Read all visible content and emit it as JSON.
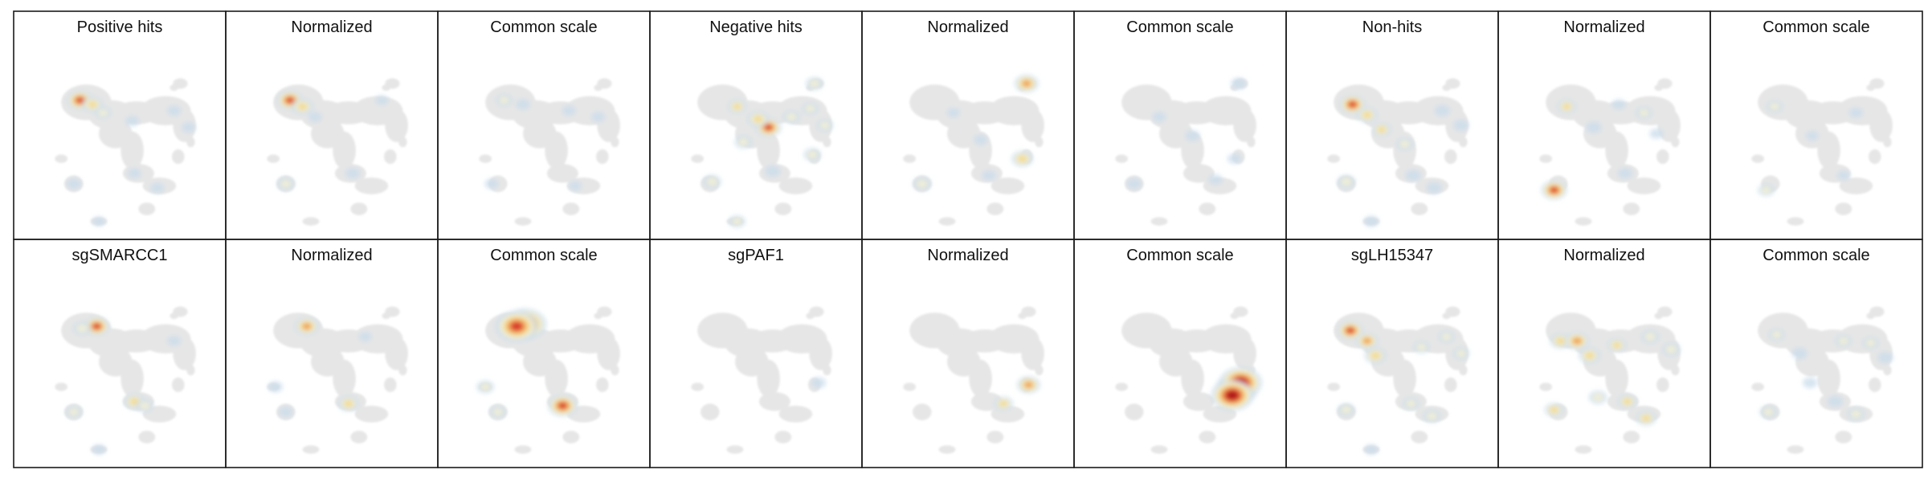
{
  "chart_data": {
    "type": "heatmap",
    "description_kind": "grid of density overlays on a shared embedding layout",
    "background_color": "#e6e6e6",
    "colormap": [
      "#c9dceb",
      "#f2efd6",
      "#f4d98a",
      "#ef9a55",
      "#d73027",
      "#a50f15"
    ],
    "panels": [
      {
        "title": "Positive hits",
        "hotspots": [
          [
            -1.9,
            2.2,
            1.0
          ],
          [
            -1.3,
            2.0,
            0.7
          ],
          [
            -0.8,
            1.6,
            0.45
          ],
          [
            0.6,
            1.2,
            0.3
          ],
          [
            2.6,
            1.7,
            0.3
          ],
          [
            3.3,
            0.9,
            0.3
          ],
          [
            -2.2,
            -1.8,
            0.35
          ],
          [
            0.7,
            -1.3,
            0.3
          ],
          [
            1.8,
            -2.0,
            0.3
          ],
          [
            -1.0,
            -3.6,
            0.25
          ]
        ]
      },
      {
        "title": "Normalized",
        "hotspots": [
          [
            -2.0,
            2.2,
            1.0
          ],
          [
            -1.4,
            1.9,
            0.75
          ],
          [
            -0.8,
            1.4,
            0.3
          ],
          [
            -2.2,
            -1.8,
            0.5
          ],
          [
            1.0,
            -1.3,
            0.35
          ],
          [
            2.4,
            2.2,
            0.25
          ]
        ]
      },
      {
        "title": "Common scale",
        "hotspots": [
          [
            -1.9,
            2.2,
            0.45
          ],
          [
            -1.0,
            2.0,
            0.35
          ],
          [
            1.2,
            1.7,
            0.3
          ],
          [
            2.6,
            1.4,
            0.3
          ],
          [
            -2.5,
            -1.8,
            0.3
          ],
          [
            1.5,
            -1.9,
            0.25
          ]
        ]
      },
      {
        "title": "Negative hits",
        "hotspots": [
          [
            2.8,
            3.0,
            0.5
          ],
          [
            0.6,
            0.9,
            1.0
          ],
          [
            0.1,
            1.3,
            0.75
          ],
          [
            -0.9,
            1.9,
            0.6
          ],
          [
            -0.6,
            0.2,
            0.5
          ],
          [
            1.7,
            1.4,
            0.5
          ],
          [
            2.6,
            1.8,
            0.45
          ],
          [
            3.3,
            1.0,
            0.45
          ],
          [
            2.7,
            -0.4,
            0.5
          ],
          [
            -2.1,
            -1.7,
            0.55
          ],
          [
            0.8,
            -1.2,
            0.4
          ],
          [
            -0.9,
            -3.6,
            0.45
          ]
        ]
      },
      {
        "title": "Normalized",
        "hotspots": [
          [
            2.8,
            3.0,
            0.9
          ],
          [
            2.6,
            -0.6,
            0.75
          ],
          [
            -2.2,
            -1.8,
            0.55
          ],
          [
            0.6,
            0.3,
            0.3
          ],
          [
            -0.7,
            1.6,
            0.25
          ],
          [
            1.0,
            -1.4,
            0.3
          ]
        ]
      },
      {
        "title": "Common scale",
        "hotspots": [
          [
            2.8,
            3.0,
            0.4
          ],
          [
            0.6,
            0.5,
            0.35
          ],
          [
            -1.0,
            1.4,
            0.3
          ],
          [
            -2.2,
            -1.8,
            0.35
          ],
          [
            1.7,
            -1.6,
            0.3
          ],
          [
            2.6,
            -0.6,
            0.3
          ]
        ]
      },
      {
        "title": "Non-hits",
        "hotspots": [
          [
            -1.9,
            2.0,
            1.0
          ],
          [
            -1.2,
            1.5,
            0.7
          ],
          [
            -0.5,
            0.8,
            0.6
          ],
          [
            0.6,
            0.1,
            0.5
          ],
          [
            2.4,
            1.7,
            0.4
          ],
          [
            3.3,
            1.0,
            0.4
          ],
          [
            -2.2,
            -1.7,
            0.55
          ],
          [
            1.0,
            -1.4,
            0.4
          ],
          [
            2.0,
            -2.0,
            0.4
          ],
          [
            -1.0,
            -3.6,
            0.35
          ]
        ]
      },
      {
        "title": "Normalized",
        "hotspots": [
          [
            -2.4,
            -2.1,
            1.0
          ],
          [
            -1.8,
            1.9,
            0.6
          ],
          [
            1.9,
            1.6,
            0.45
          ],
          [
            -0.5,
            0.9,
            0.4
          ],
          [
            1.0,
            -1.3,
            0.35
          ],
          [
            2.5,
            0.6,
            0.3
          ],
          [
            0.7,
            2.0,
            0.3
          ]
        ]
      },
      {
        "title": "Common scale",
        "hotspots": [
          [
            -2.0,
            1.9,
            0.45
          ],
          [
            -2.4,
            -2.1,
            0.45
          ],
          [
            1.9,
            1.6,
            0.3
          ],
          [
            -0.2,
            0.5,
            0.25
          ],
          [
            1.3,
            -1.4,
            0.25
          ]
        ]
      },
      {
        "title": "sgSMARCC1",
        "hotspots": [
          [
            -1.1,
            2.3,
            1.0
          ],
          [
            -1.8,
            2.2,
            0.55
          ],
          [
            0.7,
            -1.3,
            0.7
          ],
          [
            1.2,
            -1.5,
            0.5
          ],
          [
            -2.2,
            -1.8,
            0.45
          ],
          [
            2.6,
            1.6,
            0.3
          ],
          [
            -1.0,
            -3.6,
            0.3
          ]
        ]
      },
      {
        "title": "Normalized",
        "hotspots": [
          [
            -1.2,
            2.3,
            0.9
          ],
          [
            0.8,
            -1.4,
            0.7
          ],
          [
            -2.7,
            -0.6,
            0.35
          ],
          [
            1.6,
            1.8,
            0.25
          ],
          [
            -2.2,
            -1.8,
            0.3
          ]
        ]
      },
      {
        "title": "Common scale",
        "hotspots": [
          [
            -0.9,
            2.4,
            2.0
          ],
          [
            -1.3,
            2.3,
            1.7
          ],
          [
            0.9,
            -1.5,
            1.4
          ],
          [
            -2.8,
            -0.6,
            0.5
          ],
          [
            -2.2,
            -1.8,
            0.45
          ]
        ]
      },
      {
        "title": "sgPAF1",
        "hotspots": [
          [
            3.0,
            -0.4,
            0.35
          ],
          [
            -1.0,
            1.6,
            0.1
          ]
        ]
      },
      {
        "title": "Normalized",
        "hotspots": [
          [
            2.9,
            -0.5,
            0.85
          ],
          [
            1.7,
            -1.4,
            0.6
          ]
        ]
      },
      {
        "title": "Common scale",
        "hotspots": [
          [
            2.7,
            -0.7,
            1.9
          ],
          [
            2.9,
            -0.4,
            1.9
          ],
          [
            2.5,
            -1.0,
            1.8
          ]
        ]
      },
      {
        "title": "sgLH15347",
        "hotspots": [
          [
            -2.0,
            2.1,
            1.0
          ],
          [
            -1.2,
            1.6,
            0.8
          ],
          [
            -0.8,
            0.9,
            0.75
          ],
          [
            1.4,
            1.3,
            0.45
          ],
          [
            2.6,
            1.8,
            0.45
          ],
          [
            3.3,
            1.0,
            0.45
          ],
          [
            -2.2,
            -1.7,
            0.5
          ],
          [
            0.9,
            -1.4,
            0.45
          ],
          [
            1.9,
            -2.0,
            0.5
          ],
          [
            -1.0,
            -3.6,
            0.3
          ]
        ]
      },
      {
        "title": "Normalized",
        "hotspots": [
          [
            -2.1,
            1.6,
            0.7
          ],
          [
            -1.3,
            1.6,
            0.9
          ],
          [
            -0.7,
            0.9,
            0.75
          ],
          [
            0.6,
            1.4,
            0.6
          ],
          [
            2.2,
            1.8,
            0.55
          ],
          [
            3.2,
            1.2,
            0.55
          ],
          [
            -2.4,
            -1.7,
            0.6
          ],
          [
            -0.3,
            -1.1,
            0.55
          ],
          [
            1.1,
            -1.3,
            0.6
          ],
          [
            2.0,
            -2.1,
            0.65
          ]
        ]
      },
      {
        "title": "Common scale",
        "hotspots": [
          [
            -1.9,
            1.9,
            0.45
          ],
          [
            -0.8,
            1.0,
            0.4
          ],
          [
            1.3,
            1.6,
            0.45
          ],
          [
            2.6,
            1.5,
            0.45
          ],
          [
            3.3,
            0.8,
            0.4
          ],
          [
            -2.3,
            -1.8,
            0.5
          ],
          [
            0.9,
            -1.3,
            0.4
          ],
          [
            1.9,
            -1.9,
            0.5
          ],
          [
            -0.3,
            -0.4,
            0.35
          ]
        ]
      }
    ]
  }
}
